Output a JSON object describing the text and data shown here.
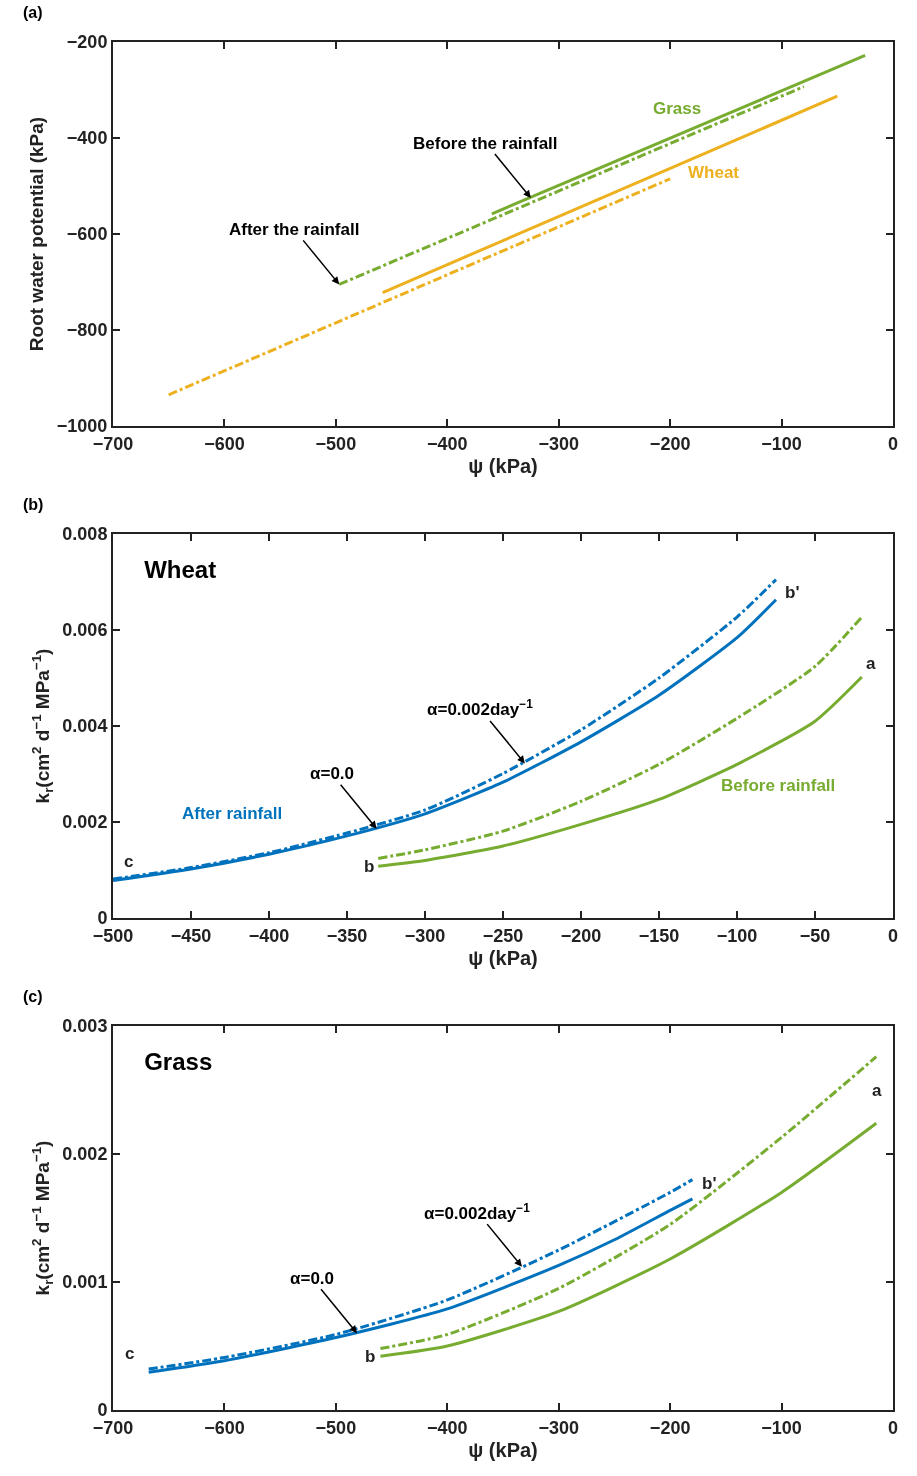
{
  "chart_data": [
    {
      "type": "line",
      "xlabel": "ψ (kPa)",
      "ylabel": "Root water potential (kPa)",
      "xlim": [
        -700,
        0
      ],
      "ylim": [
        -1000,
        -200
      ],
      "xticks": [
        {
          "value": -700,
          "label": "−700"
        },
        {
          "value": -600,
          "label": "−600"
        },
        {
          "value": -500,
          "label": "−500"
        },
        {
          "value": -400,
          "label": "−400"
        },
        {
          "value": -300,
          "label": "−300"
        },
        {
          "value": -200,
          "label": "−200"
        },
        {
          "value": -100,
          "label": "−100"
        },
        {
          "value": 0,
          "label": "0"
        }
      ],
      "yticks": [
        {
          "value": -1000,
          "label": "−1000"
        },
        {
          "value": -800,
          "label": "−800"
        },
        {
          "value": -600,
          "label": "−600"
        },
        {
          "value": -400,
          "label": "−400"
        },
        {
          "value": -200,
          "label": "−200"
        }
      ],
      "grid": false,
      "marker": "none",
      "series": [
        {
          "color": "#77ac30",
          "line_style": "solid",
          "x": [
            -360,
            -25
          ],
          "values": [
            -558,
            -228
          ]
        },
        {
          "color": "#77ac30",
          "line_style": "dashed",
          "x": [
            -497,
            -80
          ],
          "values": [
            -705,
            -293
          ]
        },
        {
          "color": "#edb120",
          "line_style": "solid",
          "x": [
            -458,
            -50
          ],
          "values": [
            -722,
            -313
          ]
        },
        {
          "color": "#edb120",
          "line_style": "dashed",
          "x": [
            -650,
            -200
          ],
          "values": [
            -935,
            -485
          ]
        }
      ],
      "annotations": [
        "(a)",
        "Grass",
        "Wheat",
        {
          "text": "Before the rainfall",
          "x": -325,
          "y": -525
        },
        {
          "text": "After the rainfall",
          "x": -497,
          "y": -705
        }
      ]
    },
    {
      "type": "line",
      "title": "Wheat",
      "xlabel": "ψ (kPa)",
      "ylabel": "k$_{r}$(cm$^{2}$ d$^{−1}$ MPa$^{−1}$)",
      "xlim": [
        -500,
        0
      ],
      "ylim": [
        0,
        0.008
      ],
      "xticks": [
        {
          "value": -500,
          "label": "−500"
        },
        {
          "value": -450,
          "label": "−450"
        },
        {
          "value": -400,
          "label": "−400"
        },
        {
          "value": -350,
          "label": "−350"
        },
        {
          "value": -300,
          "label": "−300"
        },
        {
          "value": -250,
          "label": "−250"
        },
        {
          "value": -200,
          "label": "−200"
        },
        {
          "value": -150,
          "label": "−150"
        },
        {
          "value": -100,
          "label": "−100"
        },
        {
          "value": -50,
          "label": "−50"
        },
        {
          "value": 0,
          "label": "0"
        }
      ],
      "yticks": [
        0,
        0.002,
        0.004,
        0.006,
        0.008
      ],
      "grid": false,
      "marker": "none",
      "series": [
        {
          "color": "#0072bd",
          "line_style": "solid",
          "x": [
            -500,
            -450,
            -400,
            -350,
            -300,
            -250,
            -200,
            -150,
            -100,
            -75
          ],
          "values": [
            0.00078,
            0.00102,
            0.00133,
            0.00171,
            0.00217,
            0.00283,
            0.00367,
            0.00464,
            0.00584,
            0.00663
          ]
        },
        {
          "color": "#0072bd",
          "line_style": "dashed",
          "x": [
            -500,
            -450,
            -400,
            -350,
            -300,
            -250,
            -200,
            -150,
            -100,
            -75
          ],
          "values": [
            0.00081,
            0.00105,
            0.00136,
            0.00177,
            0.00225,
            0.00301,
            0.00392,
            0.005,
            0.00627,
            0.00705
          ]
        },
        {
          "color": "#77ac30",
          "line_style": "solid",
          "x": [
            -330,
            -300,
            -250,
            -200,
            -150,
            -100,
            -50,
            -20
          ],
          "values": [
            0.00108,
            0.0012,
            0.0015,
            0.00195,
            0.00247,
            0.0032,
            0.0041,
            0.00502
          ]
        },
        {
          "color": "#77ac30",
          "line_style": "dashed",
          "x": [
            -330,
            -300,
            -250,
            -200,
            -150,
            -100,
            -50,
            -20
          ],
          "values": [
            0.00124,
            0.00142,
            0.00181,
            0.00243,
            0.0032,
            0.00416,
            0.00524,
            0.00627
          ]
        }
      ],
      "annotations": [
        "(b)",
        {
          "text": "α=0.0",
          "x": -331,
          "y": 0.00186
        },
        {
          "text": "α=0.002day$^{−1}$",
          "x": -236,
          "y": 0.00322
        },
        "After rainfall",
        "Before rainfall",
        "a",
        "b'",
        "b",
        "c"
      ]
    },
    {
      "type": "line",
      "title": "Grass",
      "xlabel": "ψ (kPa)",
      "ylabel": "k$_{r}$(cm$^{2}$ d$^{−1}$ MPa$^{−1}$)",
      "xlim": [
        -700,
        0
      ],
      "ylim": [
        0,
        0.003
      ],
      "xticks": [
        {
          "value": -700,
          "label": "−700"
        },
        {
          "value": -600,
          "label": "−600"
        },
        {
          "value": -500,
          "label": "−500"
        },
        {
          "value": -400,
          "label": "−400"
        },
        {
          "value": -300,
          "label": "−300"
        },
        {
          "value": -200,
          "label": "−200"
        },
        {
          "value": -100,
          "label": "−100"
        },
        {
          "value": 0,
          "label": "0"
        }
      ],
      "yticks": [
        0,
        0.001,
        0.002,
        0.003
      ],
      "grid": false,
      "marker": "none",
      "series": [
        {
          "color": "#0072bd",
          "line_style": "solid",
          "x": [
            -668,
            -600,
            -500,
            -400,
            -300,
            -250,
            -200,
            -180
          ],
          "values": [
            0.000295,
            0.000385,
            0.000566,
            0.00079,
            0.00113,
            0.00133,
            0.00156,
            0.00165
          ]
        },
        {
          "color": "#0072bd",
          "line_style": "dashed",
          "x": [
            -668,
            -600,
            -500,
            -400,
            -300,
            -200,
            -180
          ],
          "values": [
            0.00032,
            0.00041,
            0.00059,
            0.00086,
            0.00125,
            0.0017,
            0.0018
          ]
        },
        {
          "color": "#77ac30",
          "line_style": "solid",
          "x": [
            -460,
            -400,
            -300,
            -200,
            -100,
            -15
          ],
          "values": [
            0.00042,
            0.0005,
            0.00077,
            0.00118,
            0.0017,
            0.00224
          ]
        },
        {
          "color": "#77ac30",
          "line_style": "dashed",
          "x": [
            -460,
            -400,
            -300,
            -200,
            -100,
            -15
          ],
          "values": [
            0.00048,
            0.00059,
            0.00095,
            0.00145,
            0.00213,
            0.00276
          ]
        }
      ],
      "annotations": [
        "(c)",
        {
          "text": "α=0.0",
          "x": -481,
          "y": 0.0006
        },
        {
          "text": "α=0.002day$^{−1}$",
          "x": -333,
          "y": 0.00112
        },
        "a",
        "b'",
        "b",
        "c"
      ]
    }
  ]
}
